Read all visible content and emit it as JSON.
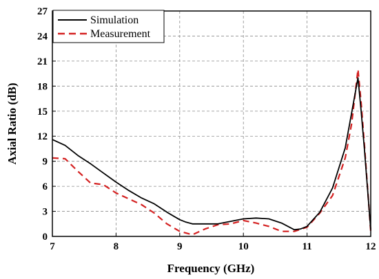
{
  "chart_data": {
    "type": "line",
    "title": "",
    "xlabel": "Frequency (GHz)",
    "ylabel": "Axial Ratio (dB)",
    "xlim": [
      7,
      12
    ],
    "ylim": [
      0,
      27
    ],
    "xticks": [
      7,
      8,
      9,
      10,
      11,
      12
    ],
    "yticks": [
      0,
      3,
      6,
      9,
      12,
      15,
      18,
      21,
      24,
      27
    ],
    "grid": true,
    "legend_position": "top-left",
    "series": [
      {
        "name": "Simulation",
        "color": "#000000",
        "style": "solid",
        "x": [
          7.0,
          7.2,
          7.4,
          7.6,
          7.8,
          8.0,
          8.2,
          8.4,
          8.6,
          8.8,
          9.0,
          9.1,
          9.2,
          9.4,
          9.6,
          9.8,
          10.0,
          10.2,
          10.4,
          10.6,
          10.8,
          10.9,
          11.0,
          11.2,
          11.4,
          11.6,
          11.7,
          11.8,
          11.85,
          11.9,
          12.0
        ],
        "y": [
          11.6,
          10.9,
          9.7,
          8.7,
          7.6,
          6.5,
          5.5,
          4.6,
          3.9,
          2.9,
          2.0,
          1.7,
          1.5,
          1.5,
          1.5,
          1.8,
          2.1,
          2.2,
          2.1,
          1.6,
          0.8,
          0.9,
          1.2,
          2.9,
          5.8,
          10.6,
          14.8,
          19.0,
          15.0,
          10.5,
          0.8
        ]
      },
      {
        "name": "Measurement",
        "color": "#d42020",
        "style": "dashed",
        "x": [
          7.0,
          7.2,
          7.4,
          7.6,
          7.8,
          8.0,
          8.2,
          8.4,
          8.6,
          8.8,
          9.0,
          9.2,
          9.4,
          9.6,
          9.8,
          10.0,
          10.2,
          10.4,
          10.6,
          10.8,
          11.0,
          11.2,
          11.4,
          11.6,
          11.7,
          11.8,
          11.85,
          11.9,
          12.0
        ],
        "y": [
          9.4,
          9.3,
          7.8,
          6.4,
          6.2,
          5.2,
          4.5,
          3.8,
          2.8,
          1.5,
          0.6,
          0.2,
          0.9,
          1.4,
          1.5,
          1.9,
          1.6,
          1.2,
          0.6,
          0.6,
          1.1,
          2.8,
          4.9,
          9.4,
          13.5,
          20.0,
          16.0,
          11.0,
          0.6
        ]
      }
    ]
  }
}
